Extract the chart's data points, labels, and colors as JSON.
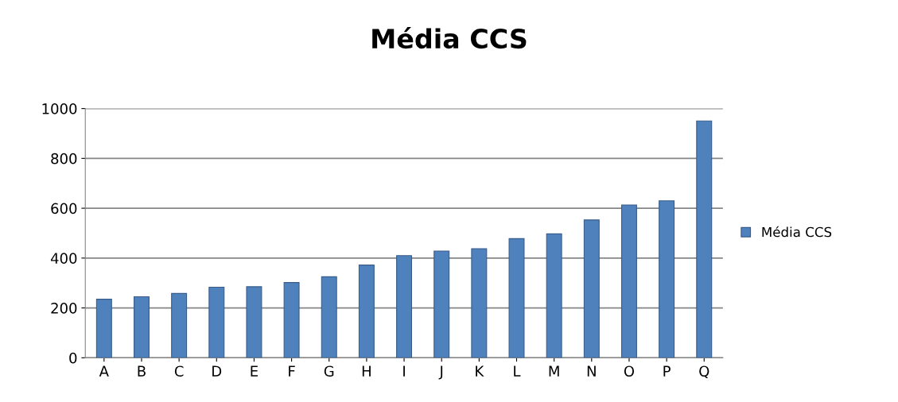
{
  "chart_data": {
    "type": "bar",
    "title": "Média CCS",
    "categories": [
      "A",
      "B",
      "C",
      "D",
      "E",
      "F",
      "G",
      "H",
      "I",
      "J",
      "K",
      "L",
      "M",
      "N",
      "O",
      "P",
      "Q"
    ],
    "series": [
      {
        "name": "Média CCS",
        "color": "#4f81bd",
        "values": [
          235,
          245,
          258,
          283,
          285,
          302,
          325,
          372,
          410,
          428,
          438,
          478,
          497,
          553,
          613,
          630,
          950
        ]
      }
    ],
    "ylim": [
      0,
      1000
    ],
    "yticks": [
      0,
      200,
      400,
      600,
      800,
      1000
    ],
    "grid": "y",
    "legend": "right"
  }
}
